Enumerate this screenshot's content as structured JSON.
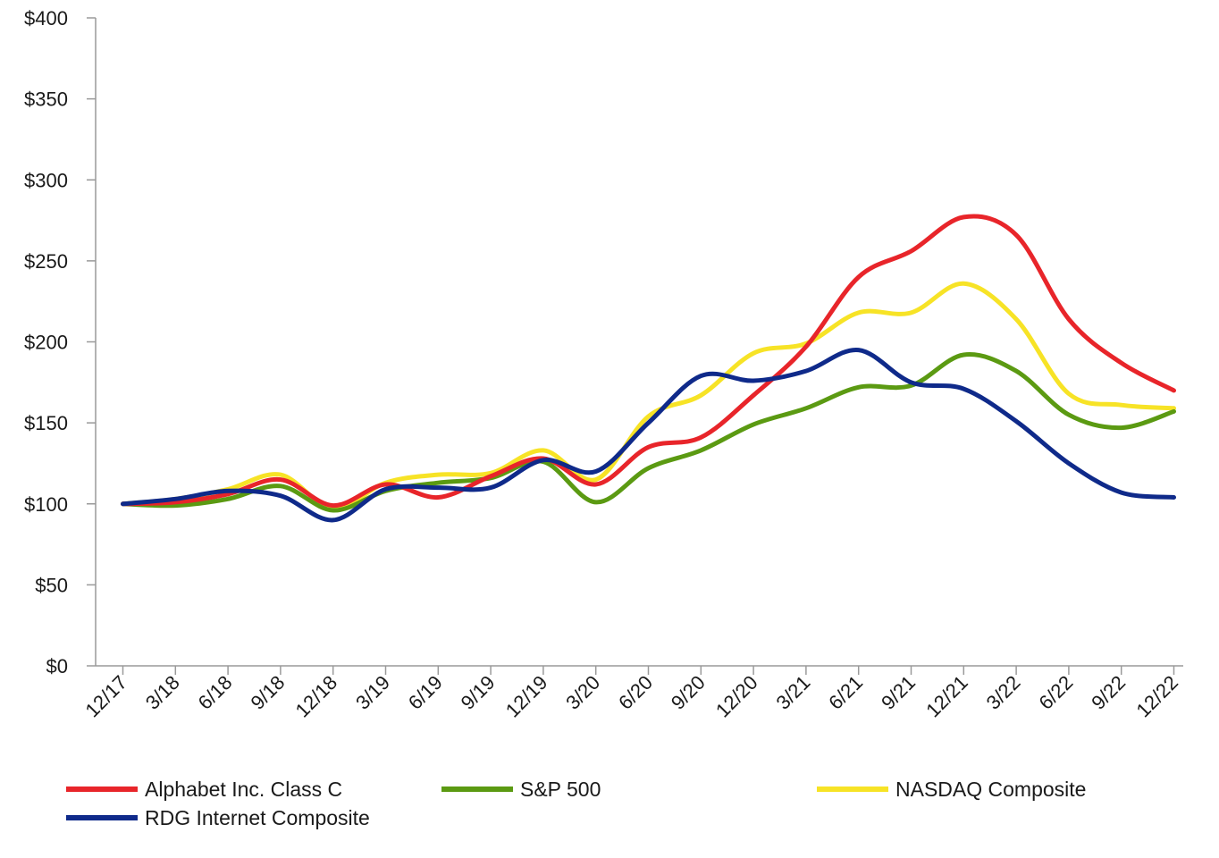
{
  "chart_data": {
    "type": "line",
    "title": "",
    "xlabel": "",
    "ylabel": "",
    "categories": [
      "12/17",
      "3/18",
      "6/18",
      "9/18",
      "12/18",
      "3/19",
      "6/19",
      "9/19",
      "12/19",
      "3/20",
      "6/20",
      "9/20",
      "12/20",
      "3/21",
      "6/21",
      "9/21",
      "12/21",
      "3/22",
      "6/22",
      "9/22",
      "12/22"
    ],
    "ylim": [
      0,
      400
    ],
    "yticks": [
      0,
      50,
      100,
      150,
      200,
      250,
      300,
      350,
      400
    ],
    "ytick_labels": [
      "$0",
      "$50",
      "$100",
      "$150",
      "$200",
      "$250",
      "$300",
      "$350",
      "$400"
    ],
    "grid": false,
    "legend_position": "bottom",
    "series": [
      {
        "name": "Alphabet Inc. Class C",
        "color": "#e8252a",
        "values": [
          100,
          101,
          106,
          115,
          99,
          112,
          104,
          117,
          128,
          112,
          135,
          141,
          167,
          197,
          240,
          256,
          277,
          266,
          214,
          187,
          170
        ]
      },
      {
        "name": "S&P 500",
        "color": "#5b9a12",
        "values": [
          100,
          99,
          103,
          111,
          96,
          108,
          113,
          116,
          126,
          101,
          122,
          133,
          149,
          159,
          172,
          173,
          192,
          182,
          155,
          147,
          157
        ]
      },
      {
        "name": "NASDAQ Composite",
        "color": "#f7e326",
        "values": [
          100,
          103,
          109,
          118,
          97,
          113,
          118,
          119,
          133,
          115,
          154,
          167,
          193,
          199,
          218,
          218,
          236,
          214,
          168,
          161,
          159
        ]
      },
      {
        "name": "RDG Internet Composite",
        "color": "#0f2a8a",
        "values": [
          100,
          103,
          108,
          105,
          90,
          109,
          110,
          110,
          127,
          120,
          150,
          179,
          176,
          182,
          195,
          175,
          171,
          151,
          125,
          107,
          104
        ]
      }
    ]
  }
}
